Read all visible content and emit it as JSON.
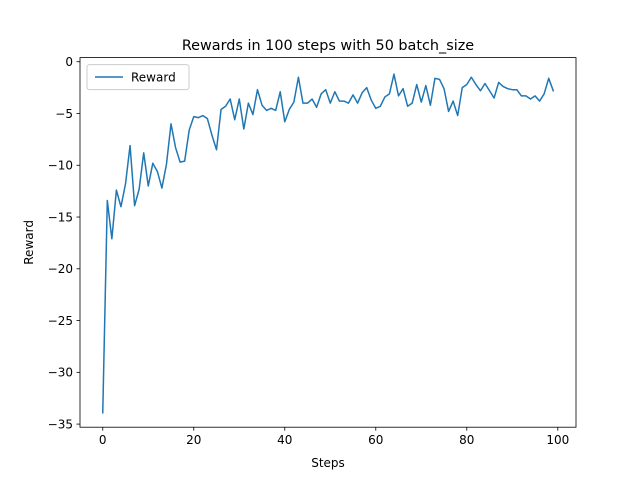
{
  "chart_data": {
    "type": "line",
    "title": "Rewards in 100 steps with 50 batch_size",
    "xlabel": "Steps",
    "ylabel": "Reward",
    "xlim": [
      -5,
      104
    ],
    "ylim": [
      -35.3,
      0.4
    ],
    "xticks": [
      0,
      20,
      40,
      60,
      80,
      100
    ],
    "xtick_labels": [
      "0",
      "20",
      "40",
      "60",
      "80",
      "100"
    ],
    "yticks": [
      0,
      -5,
      -10,
      -15,
      -20,
      -25,
      -30,
      -35
    ],
    "ytick_labels": [
      "0",
      "−5",
      "−10",
      "−15",
      "−20",
      "−25",
      "−30",
      "−35"
    ],
    "grid": false,
    "legend_position": "top-left",
    "series": [
      {
        "name": "Reward",
        "color": "#1f77b4",
        "x": [
          0,
          1,
          2,
          3,
          4,
          5,
          6,
          7,
          8,
          9,
          10,
          11,
          12,
          13,
          14,
          15,
          16,
          17,
          18,
          19,
          20,
          21,
          22,
          23,
          24,
          25,
          26,
          27,
          28,
          29,
          30,
          31,
          32,
          33,
          34,
          35,
          36,
          37,
          38,
          39,
          40,
          41,
          42,
          43,
          44,
          45,
          46,
          47,
          48,
          49,
          50,
          51,
          52,
          53,
          54,
          55,
          56,
          57,
          58,
          59,
          60,
          61,
          62,
          63,
          64,
          65,
          66,
          67,
          68,
          69,
          70,
          71,
          72,
          73,
          74,
          75,
          76,
          77,
          78,
          79,
          80,
          81,
          82,
          83,
          84,
          85,
          86,
          87,
          88,
          89,
          90,
          91,
          92,
          93,
          94,
          95,
          96,
          97,
          98,
          99
        ],
        "values": [
          -33.9,
          -13.4,
          -17.1,
          -12.4,
          -14.0,
          -11.8,
          -8.1,
          -13.9,
          -12.3,
          -8.8,
          -12.0,
          -9.8,
          -10.6,
          -12.2,
          -9.9,
          -6.0,
          -8.3,
          -9.7,
          -9.6,
          -6.6,
          -5.3,
          -5.4,
          -5.2,
          -5.5,
          -7.1,
          -8.5,
          -4.6,
          -4.3,
          -3.6,
          -5.6,
          -3.6,
          -6.5,
          -4.0,
          -5.1,
          -2.7,
          -4.2,
          -4.7,
          -4.5,
          -4.7,
          -2.9,
          -5.8,
          -4.6,
          -3.9,
          -1.5,
          -4.0,
          -4.0,
          -3.6,
          -4.4,
          -3.1,
          -2.7,
          -4.0,
          -2.9,
          -3.8,
          -3.8,
          -4.0,
          -3.2,
          -4.0,
          -3.0,
          -2.5,
          -3.7,
          -4.5,
          -4.3,
          -3.4,
          -3.1,
          -1.2,
          -3.3,
          -2.6,
          -4.3,
          -4.0,
          -2.2,
          -3.9,
          -2.3,
          -4.2,
          -1.6,
          -1.7,
          -2.6,
          -4.8,
          -3.8,
          -5.2,
          -2.5,
          -2.2,
          -1.5,
          -2.2,
          -2.8,
          -2.1,
          -2.8,
          -3.5,
          -2.0,
          -2.4,
          -2.6,
          -2.7,
          -2.7,
          -3.3,
          -3.3,
          -3.6,
          -3.3,
          -3.8,
          -3.1,
          -1.6,
          -2.8
        ]
      }
    ]
  }
}
